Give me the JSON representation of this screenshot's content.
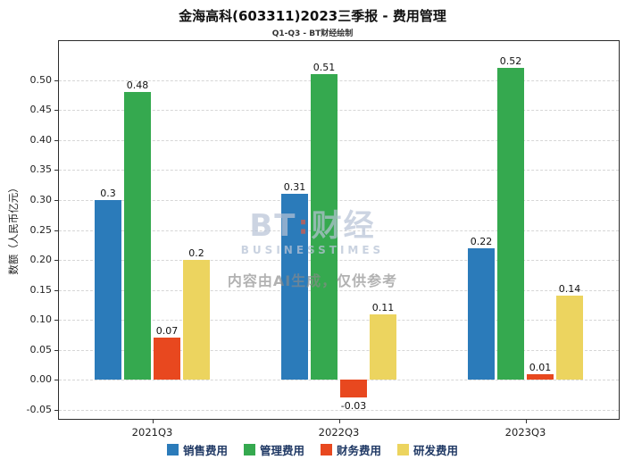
{
  "page": {
    "title": "金海高科(603311)2023三季报 - 费用管理",
    "subtitle": "Q1-Q3 - BT财经绘制"
  },
  "watermark": {
    "brand_bt": "BT",
    "logo_dots": "∶",
    "brand_cn": "财经",
    "brand_sub": "BUSINESSTIMES",
    "notice": "内容由AI生成，仅供参考"
  },
  "chart_data": {
    "type": "bar",
    "title": "金海高科(603311)2023三季报 - 费用管理",
    "subtitle": "Q1-Q3 - BT财经绘制",
    "xlabel": "",
    "ylabel": "数额（人民币亿元）",
    "categories": [
      "2021Q3",
      "2022Q3",
      "2023Q3"
    ],
    "series": [
      {
        "name": "销售费用",
        "color": "#2b7bba",
        "values": [
          0.3,
          0.31,
          0.22
        ],
        "labels": [
          "0.3",
          "0.31",
          "0.22"
        ]
      },
      {
        "name": "管理费用",
        "color": "#35a94f",
        "values": [
          0.48,
          0.51,
          0.52
        ],
        "labels": [
          "0.48",
          "0.51",
          "0.52"
        ]
      },
      {
        "name": "财务费用",
        "color": "#e8481f",
        "values": [
          0.07,
          -0.03,
          0.01
        ],
        "labels": [
          "0.07",
          "-0.03",
          "0.01"
        ]
      },
      {
        "name": "研发费用",
        "color": "#ecd45f",
        "values": [
          0.2,
          0.11,
          0.14
        ],
        "labels": [
          "0.2",
          "0.11",
          "0.14"
        ]
      }
    ],
    "yticks": [
      -0.05,
      0,
      0.05,
      0.1,
      0.15,
      0.2,
      0.25,
      0.3,
      0.35,
      0.4,
      0.45,
      0.5
    ],
    "ylim": [
      -0.065,
      0.565
    ],
    "grid": true,
    "legend_position": "bottom"
  }
}
